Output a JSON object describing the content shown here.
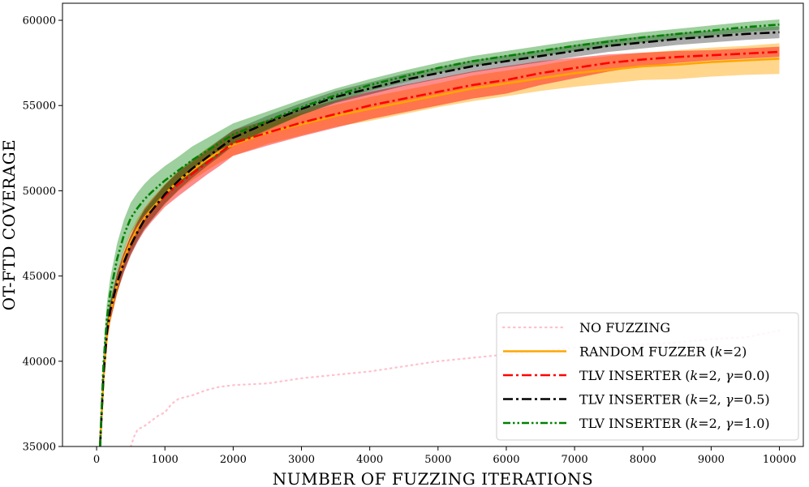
{
  "chart_data": {
    "type": "line",
    "title": "",
    "xlabel": "NUMBER OF FUZZING ITERATIONS",
    "ylabel": "OT-FTD COVERAGE",
    "xlim": [
      -500,
      10350
    ],
    "ylim": [
      35000,
      61000
    ],
    "xticks": [
      0,
      1000,
      2000,
      3000,
      4000,
      5000,
      6000,
      7000,
      8000,
      9000,
      10000
    ],
    "yticks": [
      35000,
      40000,
      45000,
      50000,
      55000,
      60000
    ],
    "xtick_labels": [
      "0",
      "1000",
      "2000",
      "3000",
      "4000",
      "5000",
      "6000",
      "7000",
      "8000",
      "9000",
      "10000"
    ],
    "ytick_labels": [
      "35000",
      "40000",
      "45000",
      "50000",
      "55000",
      "60000"
    ],
    "legend_position": "bottom-right",
    "series": [
      {
        "name": "NO FUZZING",
        "label_main": "NO FUZZING",
        "label_suffix": "",
        "color": "#ffc0cb",
        "dash": "dotted",
        "band": false,
        "x": [
          500,
          550,
          600,
          700,
          800,
          900,
          1000,
          1100,
          1200,
          1400,
          1600,
          1800,
          2000,
          2500,
          3000,
          3500,
          4000,
          4500,
          5000,
          5500,
          6000,
          6500,
          7000,
          7500,
          8000,
          8500,
          9000,
          9500,
          10000
        ],
        "y": [
          35000,
          35600,
          36000,
          36200,
          36500,
          36800,
          37000,
          37500,
          37800,
          38000,
          38300,
          38500,
          38600,
          38700,
          39000,
          39200,
          39400,
          39700,
          40000,
          40200,
          40400,
          40600,
          40800,
          40900,
          41000,
          41100,
          41300,
          41400,
          41800
        ]
      },
      {
        "name": "RANDOM FUZZER (k=2)",
        "label_main": "RANDOM FUZZER (",
        "label_suffix": "=2)",
        "color": "#ffa500",
        "dash": "solid",
        "band": true,
        "band_opacity": 0.45,
        "x": [
          50,
          100,
          150,
          200,
          300,
          400,
          500,
          600,
          700,
          800,
          1000,
          1200,
          1400,
          1600,
          1800,
          2000,
          2500,
          3000,
          3500,
          4000,
          4500,
          5000,
          5500,
          6000,
          6500,
          7000,
          7500,
          8000,
          8500,
          9000,
          9500,
          10000
        ],
        "y": [
          35000,
          39000,
          41500,
          42800,
          44500,
          46000,
          47000,
          47800,
          48400,
          48900,
          49800,
          50600,
          51200,
          51800,
          52300,
          52700,
          53400,
          53900,
          54400,
          54800,
          55200,
          55600,
          56000,
          56300,
          56600,
          56900,
          57100,
          57300,
          57400,
          57550,
          57650,
          57750
        ],
        "band_half": [
          0,
          500,
          500,
          500,
          600,
          600,
          600,
          600,
          600,
          600,
          600,
          600,
          600,
          650,
          650,
          650,
          650,
          650,
          650,
          700,
          700,
          700,
          750,
          750,
          750,
          800,
          800,
          800,
          850,
          850,
          850,
          900
        ]
      },
      {
        "name": "TLV INSERTER (k=2, γ=0.0)",
        "label_main": "TLV INSERTER (",
        "label_suffix": "=0.0)",
        "color": "#ff0000",
        "dash": "dashdot",
        "band": true,
        "band_opacity": 0.45,
        "x": [
          50,
          100,
          150,
          200,
          300,
          400,
          500,
          600,
          700,
          800,
          1000,
          1200,
          1400,
          1600,
          1800,
          2000,
          2500,
          3000,
          3500,
          4000,
          4500,
          5000,
          5500,
          6000,
          6500,
          7000,
          7500,
          8000,
          8500,
          9000,
          9500,
          10000
        ],
        "y": [
          35000,
          39200,
          41600,
          42900,
          44600,
          45800,
          46800,
          47600,
          48300,
          48800,
          49700,
          50400,
          51000,
          51600,
          52200,
          52800,
          53400,
          54000,
          54500,
          55000,
          55400,
          55800,
          56200,
          56500,
          56900,
          57200,
          57500,
          57700,
          57850,
          57950,
          58050,
          58150
        ],
        "band_half": [
          0,
          600,
          600,
          600,
          600,
          600,
          600,
          600,
          650,
          650,
          650,
          700,
          700,
          700,
          750,
          750,
          750,
          800,
          800,
          800,
          800,
          800,
          800,
          800,
          700,
          600,
          500,
          400,
          350,
          300,
          300,
          300
        ]
      },
      {
        "name": "TLV INSERTER (k=2, γ=0.5)",
        "label_main": "TLV INSERTER (",
        "label_suffix": "=0.5)",
        "color": "#000000",
        "dash": "dashdot",
        "band": true,
        "band_opacity": 0.32,
        "x": [
          50,
          100,
          150,
          200,
          300,
          400,
          500,
          600,
          700,
          800,
          1000,
          1200,
          1400,
          1600,
          1800,
          2000,
          2500,
          3000,
          3500,
          4000,
          4500,
          5000,
          5500,
          6000,
          6500,
          7000,
          7500,
          8000,
          8500,
          9000,
          9500,
          10000
        ],
        "y": [
          35000,
          39100,
          41700,
          43000,
          44600,
          45800,
          46800,
          47600,
          48300,
          48800,
          49800,
          50600,
          51300,
          51900,
          52500,
          53100,
          54000,
          54800,
          55500,
          56000,
          56500,
          56900,
          57300,
          57600,
          57900,
          58200,
          58500,
          58700,
          58900,
          59050,
          59200,
          59300
        ],
        "band_half": [
          0,
          550,
          550,
          550,
          550,
          550,
          550,
          550,
          550,
          550,
          550,
          550,
          550,
          500,
          500,
          450,
          400,
          350,
          350,
          350,
          350,
          350,
          350,
          350,
          350,
          350,
          350,
          350,
          350,
          350,
          350,
          350
        ]
      },
      {
        "name": "TLV INSERTER (k=2, γ=1.0)",
        "label_main": "TLV INSERTER (",
        "label_suffix": "=1.0)",
        "color": "#008000",
        "dash": "dashdotdot",
        "band": true,
        "band_opacity": 0.38,
        "x": [
          50,
          100,
          150,
          200,
          300,
          400,
          500,
          600,
          700,
          800,
          1000,
          1200,
          1400,
          1600,
          1800,
          2000,
          2500,
          3000,
          3500,
          4000,
          4500,
          5000,
          5500,
          6000,
          6500,
          7000,
          7500,
          8000,
          8500,
          9000,
          9500,
          10000
        ],
        "y": [
          35000,
          39800,
          42500,
          44000,
          46000,
          47400,
          48400,
          49000,
          49500,
          49900,
          50600,
          51200,
          51800,
          52300,
          52800,
          53300,
          54100,
          54900,
          55600,
          56200,
          56700,
          57200,
          57600,
          57900,
          58200,
          58500,
          58750,
          59000,
          59200,
          59400,
          59600,
          59750
        ],
        "band_half": [
          0,
          900,
          900,
          900,
          900,
          900,
          900,
          900,
          900,
          900,
          850,
          800,
          800,
          750,
          700,
          650,
          550,
          450,
          400,
          350,
          350,
          300,
          300,
          300,
          300,
          300,
          300,
          300,
          300,
          300,
          300,
          300
        ]
      }
    ]
  }
}
